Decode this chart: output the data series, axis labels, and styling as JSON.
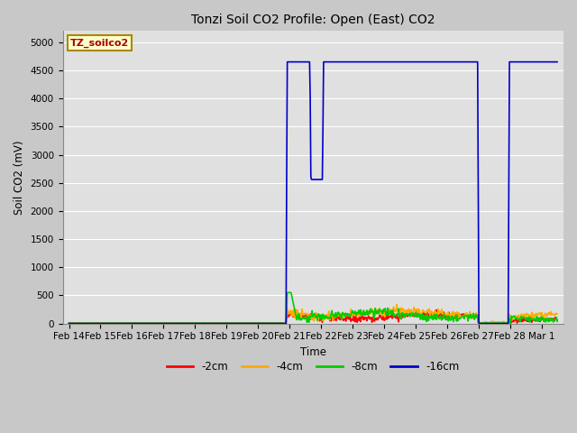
{
  "title": "Tonzi Soil CO2 Profile: Open (East) CO2",
  "ylabel": "Soil CO2 (mV)",
  "xlabel": "Time",
  "ylim": [
    0,
    5200
  ],
  "yticks": [
    0,
    500,
    1000,
    1500,
    2000,
    2500,
    3000,
    3500,
    4000,
    4500,
    5000
  ],
  "background_color": "#c8c8c8",
  "plot_bg_color": "#e0e0e0",
  "grid_color": "#ffffff",
  "legend_label": "TZ_soilco2",
  "series_labels": [
    "-2cm",
    "-4cm",
    "-8cm",
    "-16cm"
  ],
  "series_colors": [
    "#ff0000",
    "#ffaa00",
    "#00cc00",
    "#0000cc"
  ],
  "line_width": 1.2,
  "date_labels": [
    "Feb 14",
    "Feb 15",
    "Feb 16",
    "Feb 17",
    "Feb 18",
    "Feb 19",
    "Feb 20",
    "Feb 21",
    "Feb 22",
    "Feb 23",
    "Feb 24",
    "Feb 25",
    "Feb 26",
    "Feb 27",
    "Feb 28",
    "Mar 1"
  ],
  "date_positions": [
    0,
    1,
    2,
    3,
    4,
    5,
    6,
    7,
    8,
    9,
    10,
    11,
    12,
    13,
    14,
    15
  ]
}
